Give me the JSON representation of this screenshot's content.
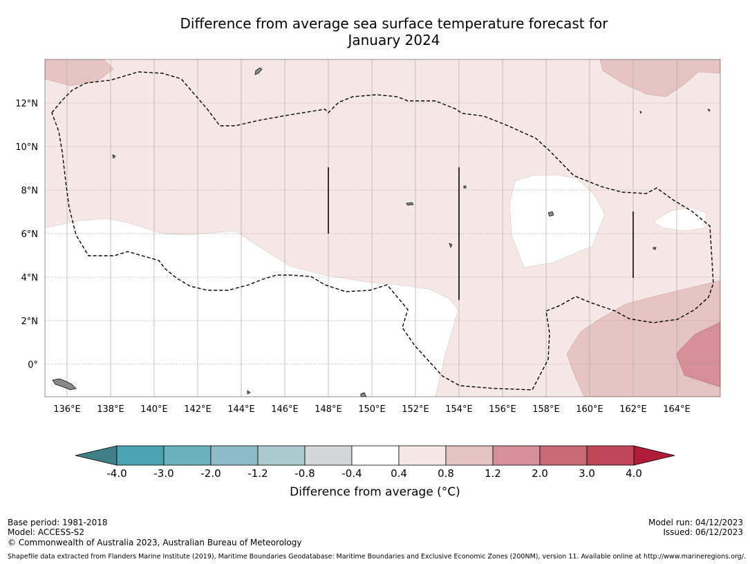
{
  "title": {
    "line1": "Difference from average sea surface temperature forecast for",
    "line2": "January 2024"
  },
  "map": {
    "lon_labels": [
      "136°E",
      "138°E",
      "140°E",
      "142°E",
      "144°E",
      "146°E",
      "148°E",
      "150°E",
      "152°E",
      "154°E",
      "156°E",
      "158°E",
      "160°E",
      "162°E",
      "164°E"
    ],
    "lon_values": [
      136,
      138,
      140,
      142,
      144,
      146,
      148,
      150,
      152,
      154,
      156,
      158,
      160,
      162,
      164
    ],
    "lat_labels": [
      "12°N",
      "10°N",
      "8°N",
      "6°N",
      "4°N",
      "2°N",
      "0°"
    ],
    "lat_values": [
      12,
      10,
      8,
      6,
      4,
      2,
      0
    ],
    "lon_range": [
      135,
      166
    ],
    "lat_range": [
      -1.5,
      14
    ],
    "regions": [
      {
        "name": "anomaly-0.4-to-0.8",
        "range": "0.4 to 0.8"
      },
      {
        "name": "anomaly-0.8-to-1.2",
        "range": "0.8 to 1.2"
      },
      {
        "name": "anomaly-1.2-to-2.0",
        "range": "1.2 to 2.0"
      },
      {
        "name": "anomaly-neutral",
        "range": "-0.4 to 0.4"
      }
    ]
  },
  "colorbar": {
    "labels": [
      "-4.0",
      "-3.0",
      "-2.0",
      "-1.2",
      "-0.8",
      "-0.4",
      "0.4",
      "0.8",
      "1.2",
      "2.0",
      "3.0",
      "4.0"
    ],
    "colors": [
      "#4ba3b2",
      "#6aafbc",
      "#8bbcc7",
      "#a9c9cf",
      "#d3d7d9",
      "#ffffff",
      "#f5e8e7",
      "#e6c4c1",
      "#d48f97",
      "#c76a76",
      "#bf4858"
    ],
    "low_extend_color": "#3f7f86",
    "high_extend_color": "#b01c38",
    "title": "Difference from average (°C)"
  },
  "footer": {
    "base_period": "Base period: 1981-2018",
    "model": "Model: ACCESS-S2",
    "copyright": "© Commonwealth of Australia 2023, Australian Bureau of Meteorology",
    "model_run": "Model run: 04/12/2023",
    "issued": "Issued: 06/12/2023",
    "shapefile": "Shapefile data extracted from Flanders Marine Institute (2019), Maritime Boundaries Geodatabase: Maritime Boundaries and Exclusive Economic Zones (200NM), version 11. Available online at http://www.marineregions.org/."
  }
}
